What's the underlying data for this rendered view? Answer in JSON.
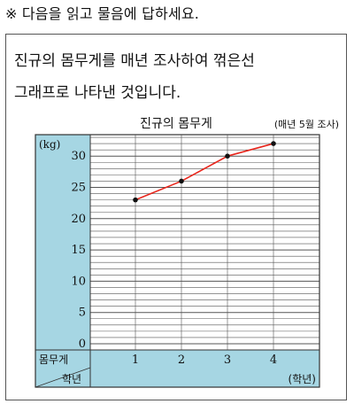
{
  "instruction": "※ 다음을 읽고 물음에 답하세요.",
  "question": {
    "line1": "진규의 몸무게를 매년 조사하여 꺾은선",
    "line2": "그래프로 나타낸 것입니다."
  },
  "colors": {
    "panel": "#a6d6e3",
    "line": "#e8261c",
    "point": "#111111",
    "grid": "#555555"
  },
  "chart_data": {
    "type": "line",
    "title": "진규의 몸무게",
    "note": "(매년 5월 조사)",
    "ylabel": "(kg)",
    "xlabel": "(학년)",
    "corner_top": "몸무게",
    "corner_bottom": "학년",
    "categories": [
      "1",
      "2",
      "3",
      "4"
    ],
    "yticks": [
      "0",
      "5",
      "10",
      "15",
      "20",
      "25",
      "30"
    ],
    "ylim": [
      0,
      32
    ],
    "values": [
      23,
      26,
      30,
      32
    ]
  }
}
